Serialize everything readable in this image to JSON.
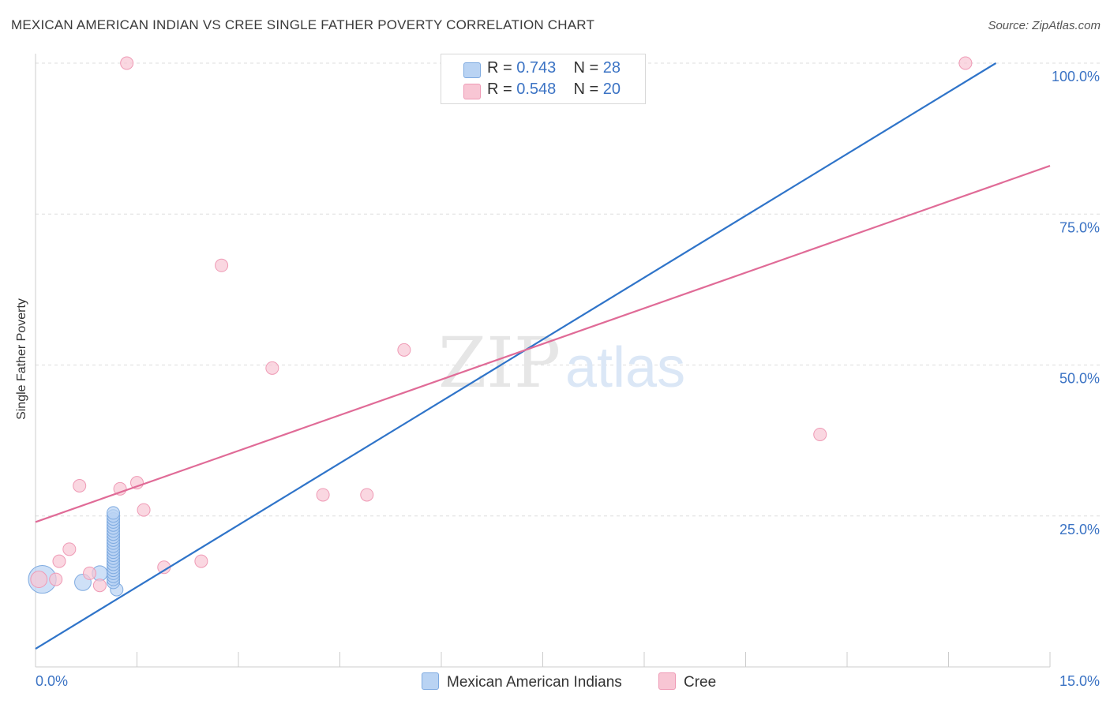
{
  "title": "MEXICAN AMERICAN INDIAN VS CREE SINGLE FATHER POVERTY CORRELATION CHART",
  "source": "Source: ZipAtlas.com",
  "watermark": {
    "zip": "ZIP",
    "atlas": "atlas"
  },
  "colors": {
    "blue_fill": "#b9d3f3",
    "blue_stroke": "#7eaae0",
    "blue_line": "#2f74c9",
    "pink_fill": "#f8c6d4",
    "pink_stroke": "#ef9ab5",
    "pink_line": "#e06b97",
    "tick_label": "#3b73c4",
    "grid": "#dddddd"
  },
  "legend": {
    "rows": [
      {
        "r_label": "R = ",
        "r_value": "0.743",
        "n_label": "N = ",
        "n_value": "28"
      },
      {
        "r_label": "R = ",
        "r_value": "0.548",
        "n_label": "N = ",
        "n_value": "20"
      }
    ]
  },
  "chart_data": {
    "type": "scatter",
    "ylabel": "Single Father Poverty",
    "xlim": [
      0,
      15
    ],
    "ylim": [
      0,
      100
    ],
    "x_tick_labels": [
      "0.0%",
      "15.0%"
    ],
    "y_ticks": [
      25,
      50,
      75,
      100
    ],
    "y_tick_labels": [
      "25.0%",
      "50.0%",
      "75.0%",
      "100.0%"
    ],
    "grid": true,
    "series": [
      {
        "name": "Mexican American Indians",
        "color": "#b9d3f3",
        "points": [
          {
            "x": 0.1,
            "y": 14.5,
            "s": 2.2
          },
          {
            "x": 0.7,
            "y": 14.0,
            "s": 1.3
          },
          {
            "x": 0.95,
            "y": 15.5,
            "s": 1.2
          },
          {
            "x": 1.2,
            "y": 12.8,
            "s": 1
          },
          {
            "x": 1.15,
            "y": 14.0,
            "s": 1
          },
          {
            "x": 1.15,
            "y": 14.5,
            "s": 1
          },
          {
            "x": 1.15,
            "y": 15.0,
            "s": 1
          },
          {
            "x": 1.15,
            "y": 15.5,
            "s": 1
          },
          {
            "x": 1.15,
            "y": 16.0,
            "s": 1
          },
          {
            "x": 1.15,
            "y": 16.5,
            "s": 1
          },
          {
            "x": 1.15,
            "y": 17.0,
            "s": 1
          },
          {
            "x": 1.15,
            "y": 17.5,
            "s": 1
          },
          {
            "x": 1.15,
            "y": 18.0,
            "s": 1
          },
          {
            "x": 1.15,
            "y": 18.5,
            "s": 1
          },
          {
            "x": 1.15,
            "y": 19.0,
            "s": 1
          },
          {
            "x": 1.15,
            "y": 19.5,
            "s": 1
          },
          {
            "x": 1.15,
            "y": 20.0,
            "s": 1
          },
          {
            "x": 1.15,
            "y": 20.5,
            "s": 1
          },
          {
            "x": 1.15,
            "y": 21.0,
            "s": 1
          },
          {
            "x": 1.15,
            "y": 21.5,
            "s": 1
          },
          {
            "x": 1.15,
            "y": 22.0,
            "s": 1
          },
          {
            "x": 1.15,
            "y": 22.5,
            "s": 1
          },
          {
            "x": 1.15,
            "y": 23.0,
            "s": 1
          },
          {
            "x": 1.15,
            "y": 23.5,
            "s": 1
          },
          {
            "x": 1.15,
            "y": 24.0,
            "s": 1
          },
          {
            "x": 1.15,
            "y": 24.5,
            "s": 1
          },
          {
            "x": 1.15,
            "y": 25.0,
            "s": 1
          },
          {
            "x": 1.15,
            "y": 25.5,
            "s": 1
          }
        ]
      },
      {
        "name": "Cree",
        "color": "#f8c6d4",
        "points": [
          {
            "x": 0.05,
            "y": 14.5,
            "s": 1.3
          },
          {
            "x": 0.3,
            "y": 14.5,
            "s": 1
          },
          {
            "x": 0.35,
            "y": 17.5,
            "s": 1
          },
          {
            "x": 0.5,
            "y": 19.5,
            "s": 1
          },
          {
            "x": 0.65,
            "y": 30.0,
            "s": 1
          },
          {
            "x": 0.8,
            "y": 15.5,
            "s": 1
          },
          {
            "x": 0.95,
            "y": 13.5,
            "s": 1
          },
          {
            "x": 1.25,
            "y": 29.5,
            "s": 1
          },
          {
            "x": 1.35,
            "y": 100,
            "s": 1
          },
          {
            "x": 1.5,
            "y": 30.5,
            "s": 1
          },
          {
            "x": 1.6,
            "y": 26.0,
            "s": 1
          },
          {
            "x": 1.9,
            "y": 16.5,
            "s": 1
          },
          {
            "x": 2.45,
            "y": 17.5,
            "s": 1
          },
          {
            "x": 2.75,
            "y": 66.5,
            "s": 1
          },
          {
            "x": 3.5,
            "y": 49.5,
            "s": 1
          },
          {
            "x": 4.25,
            "y": 28.5,
            "s": 1
          },
          {
            "x": 4.9,
            "y": 28.5,
            "s": 1
          },
          {
            "x": 5.45,
            "y": 52.5,
            "s": 1
          },
          {
            "x": 11.6,
            "y": 38.5,
            "s": 1
          },
          {
            "x": 13.75,
            "y": 100,
            "s": 1
          }
        ]
      }
    ],
    "trendlines": [
      {
        "series": "Mexican American Indians",
        "x": [
          0,
          14.2
        ],
        "y": [
          3.0,
          100
        ]
      },
      {
        "series": "Cree",
        "x": [
          0,
          15
        ],
        "y": [
          24.0,
          83.0
        ]
      }
    ]
  }
}
